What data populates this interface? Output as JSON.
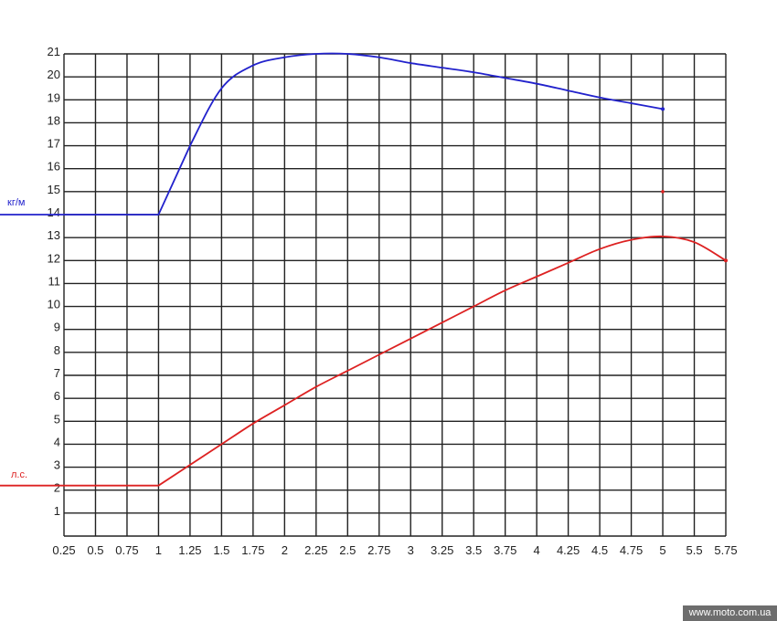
{
  "chart_data": {
    "type": "line",
    "title": "",
    "xlabel": "",
    "ylabel": "",
    "grid": true,
    "x_tick_labels": [
      "0.25",
      "0.5",
      "0.75",
      "1",
      "1.25",
      "1.5",
      "1.75",
      "2",
      "2.25",
      "2.5",
      "2.75",
      "3",
      "3.25",
      "3.5",
      "3.75",
      "4",
      "4.25",
      "4.5",
      "4.75",
      "5",
      "5.5",
      "5.75"
    ],
    "y_tick_labels": [
      "1",
      "2",
      "3",
      "4",
      "5",
      "6",
      "7",
      "8",
      "9",
      "10",
      "11",
      "12",
      "13",
      "14",
      "15",
      "16",
      "17",
      "18",
      "19",
      "20",
      "21"
    ],
    "ylim": [
      0,
      21
    ],
    "series": [
      {
        "name": "кг/м",
        "color": "#2222cc",
        "x": [
          1,
          1.25,
          1.5,
          1.75,
          2,
          2.25,
          2.5,
          2.75,
          3,
          3.25,
          3.5,
          3.75,
          4,
          4.25,
          4.5,
          4.75,
          5
        ],
        "y": [
          14,
          17.0,
          19.5,
          20.5,
          20.85,
          21.0,
          21.0,
          20.85,
          20.6,
          20.4,
          20.2,
          19.95,
          19.7,
          19.4,
          19.1,
          18.85,
          18.6
        ]
      },
      {
        "name": "л.с.",
        "color": "#dd2222",
        "x": [
          1,
          1.25,
          1.5,
          1.75,
          2,
          2.25,
          2.5,
          2.75,
          3,
          3.25,
          3.5,
          3.75,
          4,
          4.25,
          4.5,
          4.75,
          5,
          5.5,
          5.75
        ],
        "y": [
          2.2,
          3.1,
          4.0,
          4.9,
          5.7,
          6.5,
          7.2,
          7.9,
          8.6,
          9.3,
          10.0,
          10.7,
          11.3,
          11.9,
          12.5,
          12.9,
          13.05,
          12.8,
          12.0
        ]
      }
    ],
    "annotations": [
      {
        "x": 5,
        "y": 15,
        "color": "#dd2222",
        "kind": "point"
      }
    ]
  },
  "watermark": "www.moto.com.ua"
}
